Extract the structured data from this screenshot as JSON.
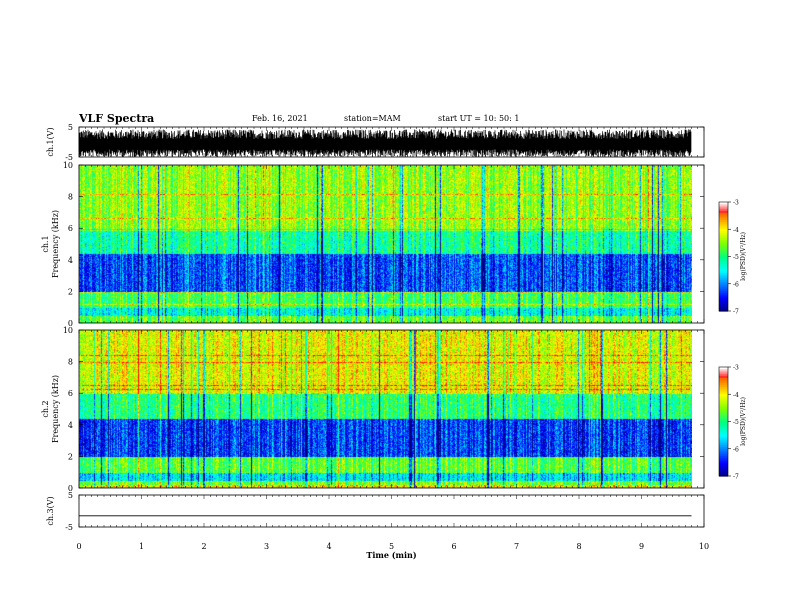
{
  "header": {
    "title": "VLF Spectra",
    "date": "Feb. 16, 2021",
    "station": "station=MAM",
    "start": "start  UT  =   10: 50: 1"
  },
  "colors": {
    "colormap": [
      "#000080",
      "#0000ff",
      "#0080ff",
      "#00ffff",
      "#00ff80",
      "#80ff00",
      "#ffff00",
      "#ff8000",
      "#ff0000",
      "#ffffff"
    ],
    "waveform": "#000000"
  },
  "chart_data": [
    {
      "type": "line",
      "panel": "ch1-waveform",
      "ylabel": "ch.1(V)",
      "ylim": [
        -5,
        5
      ],
      "yticks": [
        "5",
        "-5"
      ],
      "xlim": [
        0,
        10
      ],
      "description_of_values": "dense noisy waveform spanning roughly -5 to 4 V"
    },
    {
      "type": "heatmap",
      "panel": "ch1-spectrogram",
      "ylabel": "ch.1\nFrequency  (kHz)",
      "ylabel_lines": [
        "ch.1",
        "Frequency  (kHz)"
      ],
      "ylim": [
        0,
        10
      ],
      "yticks": [
        "0",
        "2",
        "4",
        "6",
        "8",
        "10"
      ],
      "xlim": [
        0,
        9.8
      ],
      "colorbar": {
        "label": "log(PSD)(V²/Hz)",
        "range": [
          -7,
          -3
        ],
        "ticks": [
          "-3",
          "-4",
          "-5",
          "-6",
          "-7"
        ]
      },
      "bands_khz": [
        {
          "from": 0,
          "to": 0.5,
          "level": -4.6
        },
        {
          "from": 0.5,
          "to": 1.0,
          "level": -5.4
        },
        {
          "from": 1.0,
          "to": 2.0,
          "level": -4.8
        },
        {
          "from": 2.0,
          "to": 4.4,
          "level": -6.2
        },
        {
          "from": 4.4,
          "to": 6.0,
          "level": -5.1
        },
        {
          "from": 6.0,
          "to": 10.0,
          "level": -4.4
        }
      ]
    },
    {
      "type": "heatmap",
      "panel": "ch2-spectrogram",
      "ylabel_lines": [
        "ch.2",
        "Frequency  (kHz)"
      ],
      "ylim": [
        0,
        10
      ],
      "yticks": [
        "0",
        "2",
        "4",
        "6",
        "8",
        "10"
      ],
      "xlim": [
        0,
        9.8
      ],
      "colorbar": {
        "label": "log(PSD)(V²/Hz)",
        "range": [
          -7,
          -3
        ],
        "ticks": [
          "-3",
          "-4",
          "-5",
          "-6",
          "-7"
        ]
      },
      "bands_khz": [
        {
          "from": 0,
          "to": 0.5,
          "level": -4.6
        },
        {
          "from": 0.5,
          "to": 1.0,
          "level": -5.6
        },
        {
          "from": 1.0,
          "to": 2.0,
          "level": -4.7
        },
        {
          "from": 2.0,
          "to": 4.4,
          "level": -6.3
        },
        {
          "from": 4.4,
          "to": 6.0,
          "level": -5.0
        },
        {
          "from": 6.0,
          "to": 10.0,
          "level": -4.1
        }
      ]
    },
    {
      "type": "line",
      "panel": "ch3-waveform",
      "ylabel": "ch.3(V)",
      "ylim": [
        -5,
        5
      ],
      "yticks": [
        "5",
        "-5"
      ],
      "xlim": [
        0,
        10
      ],
      "x": [
        0,
        9.8
      ],
      "y": [
        -1.5,
        -1.5
      ]
    }
  ],
  "xaxis": {
    "label": "Time  (min)",
    "ticks": [
      "0",
      "1",
      "2",
      "3",
      "4",
      "5",
      "6",
      "7",
      "8",
      "9",
      "10"
    ],
    "range": [
      0,
      10
    ]
  }
}
